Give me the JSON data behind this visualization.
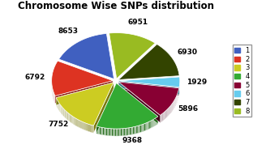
{
  "title": "Chromosome Wise SNPs distribution",
  "labels": [
    "1",
    "2",
    "3",
    "4",
    "5",
    "6",
    "7",
    "8"
  ],
  "values": [
    8653,
    6792,
    7752,
    9368,
    5896,
    1929,
    6930,
    6951
  ],
  "colors": [
    "#4060c0",
    "#dd3322",
    "#cccc22",
    "#33aa33",
    "#880033",
    "#66ccee",
    "#334400",
    "#99bb22"
  ],
  "dark_colors": [
    "#2a3f80",
    "#8b1a10",
    "#7a7a10",
    "#1a6610",
    "#440018",
    "#3a7a8a",
    "#1a2200",
    "#5a7010"
  ],
  "startangle_deg": 97,
  "explode": [
    0.05,
    0.05,
    0.05,
    0.05,
    0.05,
    0.05,
    0.05,
    0.05
  ],
  "depth": 0.12,
  "label_fontsize": 6.5,
  "title_fontsize": 8.5,
  "legend_fontsize": 6
}
